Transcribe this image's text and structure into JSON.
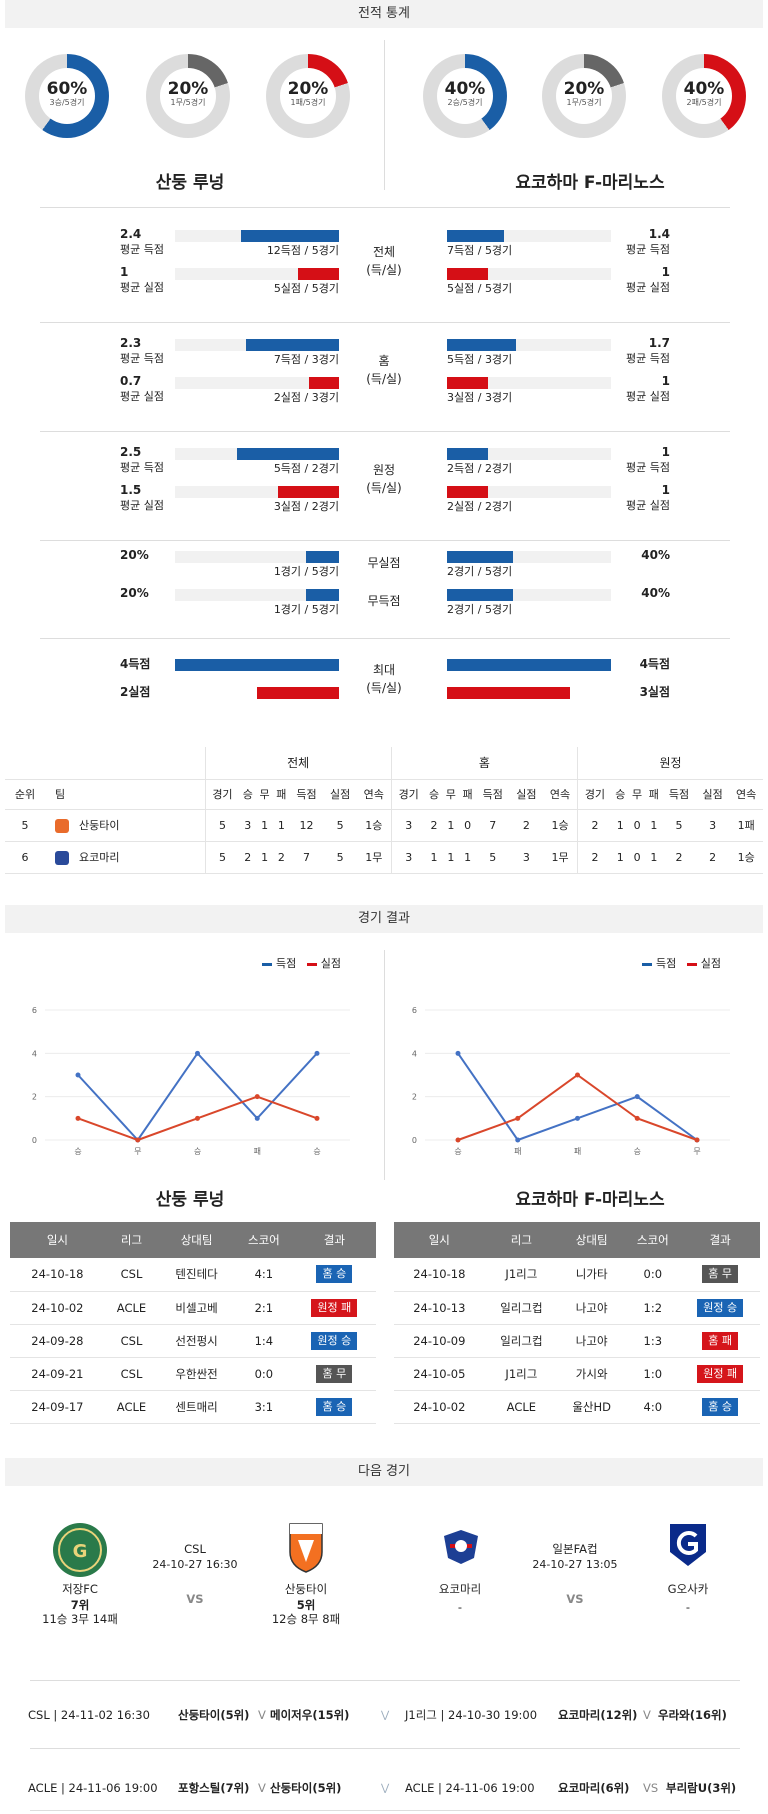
{
  "sections": {
    "record": "전적 통계",
    "results": "경기 결과",
    "next": "다음 경기"
  },
  "donuts": [
    {
      "pct": "60%",
      "sub": "3승/5경기",
      "color": "#1a5ea6",
      "value": 0.6
    },
    {
      "pct": "20%",
      "sub": "1무/5경기",
      "color": "#666666",
      "value": 0.2
    },
    {
      "pct": "20%",
      "sub": "1패/5경기",
      "color": "#d50f16",
      "value": 0.2
    },
    {
      "pct": "40%",
      "sub": "2승/5경기",
      "color": "#1a5ea6",
      "value": 0.4
    },
    {
      "pct": "20%",
      "sub": "1무/5경기",
      "color": "#666666",
      "value": 0.2
    },
    {
      "pct": "40%",
      "sub": "2패/5경기",
      "color": "#d50f16",
      "value": 0.4
    }
  ],
  "teams": {
    "home": "산둥 루넝",
    "away": "요코하마 F-마리노스"
  },
  "stats": [
    {
      "label1": "전체",
      "label2": "(득/실)",
      "home": [
        {
          "val": "2.4",
          "cap": "평균 득점",
          "note": "12득점 / 5경기",
          "frac": 0.6,
          "color": "blue"
        },
        {
          "val": "1",
          "cap": "평균 실점",
          "note": "5실점 / 5경기",
          "frac": 0.25,
          "color": "red"
        }
      ],
      "away": [
        {
          "val": "1.4",
          "cap": "평균 득점",
          "note": "7득점 / 5경기",
          "frac": 0.35,
          "color": "blue"
        },
        {
          "val": "1",
          "cap": "평균 실점",
          "note": "5실점 / 5경기",
          "frac": 0.25,
          "color": "red"
        }
      ]
    },
    {
      "label1": "홈",
      "label2": "(득/실)",
      "home": [
        {
          "val": "2.3",
          "cap": "평균 득점",
          "note": "7득점 / 3경기",
          "frac": 0.57,
          "color": "blue"
        },
        {
          "val": "0.7",
          "cap": "평균 실점",
          "note": "2실점 / 3경기",
          "frac": 0.18,
          "color": "red"
        }
      ],
      "away": [
        {
          "val": "1.7",
          "cap": "평균 득점",
          "note": "5득점 / 3경기",
          "frac": 0.42,
          "color": "blue"
        },
        {
          "val": "1",
          "cap": "평균 실점",
          "note": "3실점 / 3경기",
          "frac": 0.25,
          "color": "red"
        }
      ]
    },
    {
      "label1": "원정",
      "label2": "(득/실)",
      "home": [
        {
          "val": "2.5",
          "cap": "평균 득점",
          "note": "5득점 / 2경기",
          "frac": 0.62,
          "color": "blue"
        },
        {
          "val": "1.5",
          "cap": "평균 실점",
          "note": "3실점 / 2경기",
          "frac": 0.37,
          "color": "red"
        }
      ],
      "away": [
        {
          "val": "1",
          "cap": "평균 득점",
          "note": "2득점 / 2경기",
          "frac": 0.25,
          "color": "blue"
        },
        {
          "val": "1",
          "cap": "평균 실점",
          "note": "2실점 / 2경기",
          "frac": 0.25,
          "color": "red"
        }
      ]
    }
  ],
  "shutout": {
    "label1": "무실점",
    "label2": "무득점",
    "home": [
      {
        "val": "20%",
        "note": "1경기 / 5경기",
        "frac": 0.2
      },
      {
        "val": "20%",
        "note": "1경기 / 5경기",
        "frac": 0.2
      }
    ],
    "away": [
      {
        "val": "40%",
        "note": "2경기 / 5경기",
        "frac": 0.4
      },
      {
        "val": "40%",
        "note": "2경기 / 5경기",
        "frac": 0.4
      }
    ]
  },
  "max": {
    "label1": "최대",
    "label2": "(득/실)",
    "home": [
      {
        "val": "4득점",
        "frac": 1.0
      },
      {
        "val": "2실점",
        "frac": 0.5
      }
    ],
    "away": [
      {
        "val": "4득점",
        "frac": 1.0
      },
      {
        "val": "3실점",
        "frac": 0.75
      }
    ]
  },
  "ranking": {
    "groups": [
      "전체",
      "홈",
      "원정"
    ],
    "cols": [
      "순위",
      "팀"
    ],
    "sub": [
      "경기",
      "승",
      "무",
      "패",
      "득점",
      "실점",
      "연속"
    ],
    "rows": [
      {
        "rank": "5",
        "team": "산둥타이",
        "all": [
          "5",
          "3",
          "1",
          "1",
          "12",
          "5",
          "1승"
        ],
        "home": [
          "3",
          "2",
          "1",
          "0",
          "7",
          "2",
          "1승"
        ],
        "away": [
          "2",
          "1",
          "0",
          "1",
          "5",
          "3",
          "1패"
        ]
      },
      {
        "rank": "6",
        "team": "요코마리",
        "all": [
          "5",
          "2",
          "1",
          "2",
          "7",
          "5",
          "1무"
        ],
        "home": [
          "3",
          "1",
          "1",
          "1",
          "5",
          "3",
          "1무"
        ],
        "away": [
          "2",
          "1",
          "0",
          "1",
          "2",
          "2",
          "1승"
        ]
      }
    ]
  },
  "legend": {
    "scored": "득점",
    "conceded": "실점"
  },
  "chart_data": [
    {
      "type": "line",
      "categories": [
        "승",
        "무",
        "승",
        "패",
        "승"
      ],
      "series": [
        {
          "name": "득점",
          "values": [
            3,
            0,
            4,
            1,
            4
          ]
        },
        {
          "name": "실점",
          "values": [
            1,
            0,
            1,
            2,
            1
          ]
        }
      ],
      "yticks": [
        0,
        2,
        4,
        6
      ],
      "ylim": [
        0,
        6
      ]
    },
    {
      "type": "line",
      "categories": [
        "승",
        "패",
        "패",
        "승",
        "무"
      ],
      "series": [
        {
          "name": "득점",
          "values": [
            4,
            0,
            1,
            2,
            0
          ]
        },
        {
          "name": "실점",
          "values": [
            0,
            1,
            3,
            1,
            0
          ]
        }
      ],
      "yticks": [
        0,
        2,
        4,
        6
      ],
      "ylim": [
        0,
        6
      ]
    }
  ],
  "results_table": {
    "headers": [
      "일시",
      "리그",
      "상대팀",
      "스코어",
      "결과"
    ],
    "home": [
      [
        "24-10-18",
        "CSL",
        "텐진테다",
        "4:1",
        "홈 승",
        "bl"
      ],
      [
        "24-10-02",
        "ACLE",
        "비셀고베",
        "2:1",
        "원정 패",
        "rd"
      ],
      [
        "24-09-28",
        "CSL",
        "선전펑시",
        "1:4",
        "원정 승",
        "bl"
      ],
      [
        "24-09-21",
        "CSL",
        "우한싼전",
        "0:0",
        "홈 무",
        "gy"
      ],
      [
        "24-09-17",
        "ACLE",
        "센트매리",
        "3:1",
        "홈 승",
        "bl"
      ]
    ],
    "away": [
      [
        "24-10-18",
        "J1리그",
        "니가타",
        "0:0",
        "홈 무",
        "gy"
      ],
      [
        "24-10-13",
        "일리그컵",
        "나고야",
        "1:2",
        "원정 승",
        "bl"
      ],
      [
        "24-10-09",
        "일리그컵",
        "나고야",
        "1:3",
        "홈 패",
        "rd"
      ],
      [
        "24-10-05",
        "J1리그",
        "가시와",
        "1:0",
        "원정 패",
        "rd"
      ],
      [
        "24-10-02",
        "ACLE",
        "울산HD",
        "4:0",
        "홈 승",
        "bl"
      ]
    ]
  },
  "next_match": {
    "left": {
      "league": "CSL",
      "datetime": "24-10-27 16:30",
      "vs": "VS",
      "team1": {
        "name": "저장FC",
        "rank": "7위",
        "record": "11승 3무 14패"
      },
      "team2": {
        "name": "산둥타이",
        "rank": "5위",
        "record": "12승 8무 8패"
      }
    },
    "right": {
      "league": "일본FA컵",
      "datetime": "24-10-27 13:05",
      "vs": "VS",
      "team1": {
        "name": "요코마리",
        "rank": "-"
      },
      "team2": {
        "name": "G오사카",
        "rank": "-"
      }
    }
  },
  "upcoming": [
    {
      "left_info": "CSL | 24-11-02 16:30",
      "left_teams": "산둥타이(5위)",
      "left_vs": "V",
      "left_opp": "메이저우(15위)",
      "right_info": "J1리그 | 24-10-30 19:00",
      "right_teams": "요코마리(12위)",
      "right_vs": "V",
      "right_opp": "우라와(16위)"
    },
    {
      "left_info": "ACLE | 24-11-06 19:00",
      "left_teams": "포항스틸(7위)",
      "left_vs": "V",
      "left_opp": "산둥타이(5위)",
      "right_info": "ACLE | 24-11-06 19:00",
      "right_teams": "요코마리(6위)",
      "right_vs": "VS",
      "right_opp": "부리람U(3위)"
    }
  ]
}
